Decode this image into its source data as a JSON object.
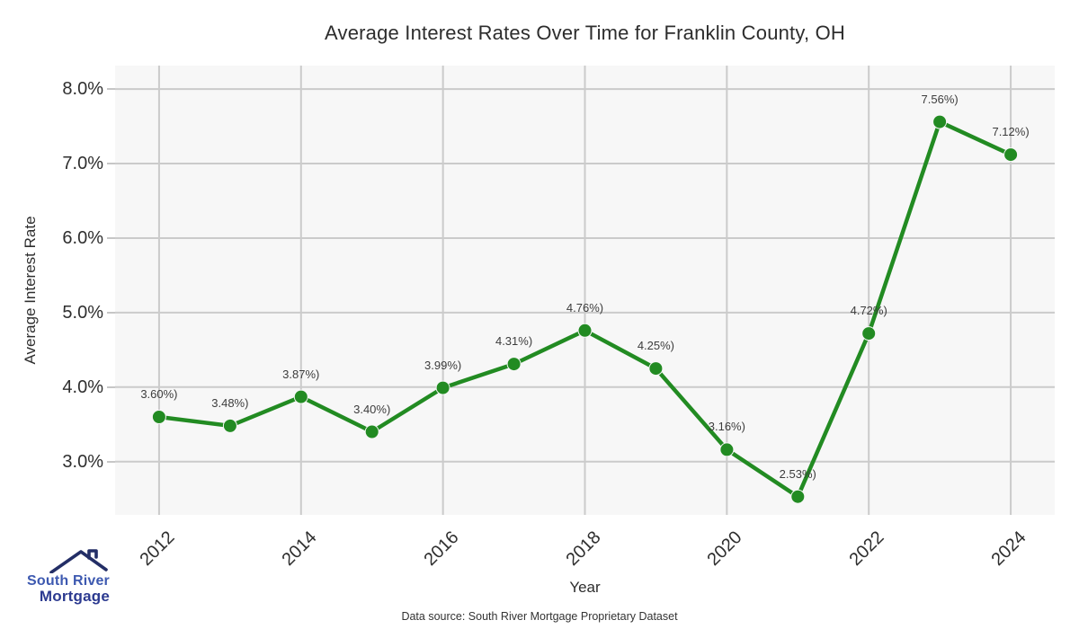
{
  "title": "Average Interest Rates Over Time for Franklin County, OH",
  "footer": {
    "source_note": "Data source: South River Mortgage Proprietary Dataset"
  },
  "logo": {
    "line1": "South River",
    "line2": "Mortgage"
  },
  "colors": {
    "series": "#228B22",
    "plot_background": "#f7f7f7",
    "grid": "#cbcbcb",
    "tick_text": "#2e2e2e",
    "logo_text_primary": "#3d59b0",
    "logo_text_secondary": "#2c3a90",
    "logo_roof": "#232e66"
  },
  "chart_data": {
    "type": "line",
    "title": "Average Interest Rates Over Time for Franklin County, OH",
    "xlabel": "Year",
    "ylabel": "Average Interest Rate",
    "x": [
      2012,
      2013,
      2014,
      2015,
      2016,
      2017,
      2018,
      2019,
      2020,
      2021,
      2022,
      2023,
      2024
    ],
    "values": [
      3.6,
      3.48,
      3.87,
      3.4,
      3.99,
      4.31,
      4.76,
      4.25,
      3.16,
      2.53,
      4.72,
      7.56,
      7.12
    ],
    "point_labels": [
      "3.60%)",
      "3.48%)",
      "3.87%)",
      "3.40%)",
      "3.99%)",
      "4.31%)",
      "4.76%)",
      "4.25%)",
      "3.16%)",
      "2.53%)",
      "4.72%)",
      "7.56%)",
      "7.12%)"
    ],
    "xticks": {
      "values": [
        2012,
        2014,
        2016,
        2018,
        2020,
        2022,
        2024
      ],
      "labels": [
        "2012",
        "2014",
        "2016",
        "2018",
        "2020",
        "2022",
        "2024"
      ]
    },
    "yticks": {
      "values": [
        3,
        4,
        5,
        6,
        7,
        8
      ],
      "labels": [
        "3.0%",
        "4.0%",
        "5.0%",
        "6.0%",
        "7.0%",
        "8.0%"
      ]
    },
    "xlim": [
      2011.38,
      2024.62
    ],
    "ylim": [
      2.285,
      8.315
    ],
    "grid": true,
    "legend": "none",
    "series_color": "#228B22"
  }
}
